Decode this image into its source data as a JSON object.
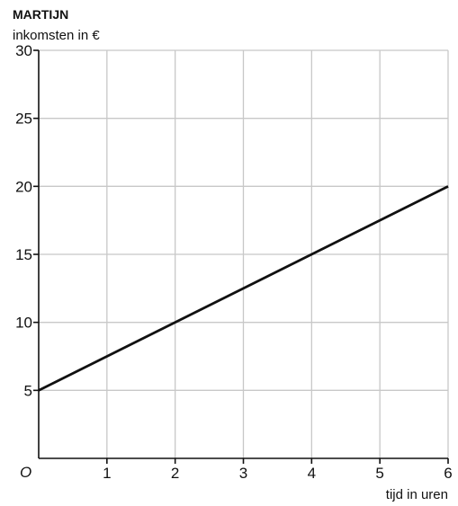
{
  "chart_data": {
    "type": "line",
    "title": "MARTIJN",
    "ylabel": "inkomsten in €",
    "xlabel": "tijd in uren",
    "origin_label": "O",
    "xlim": [
      0,
      6
    ],
    "ylim": [
      0,
      30
    ],
    "x_ticks": [
      1,
      2,
      3,
      4,
      5,
      6
    ],
    "y_ticks": [
      5,
      10,
      15,
      20,
      25,
      30
    ],
    "grid": true,
    "series": [
      {
        "x": [
          0,
          6
        ],
        "y": [
          5,
          20
        ]
      }
    ],
    "colors": {
      "line": "#111111",
      "grid": "#c8c8c8",
      "axis": "#111111"
    }
  }
}
